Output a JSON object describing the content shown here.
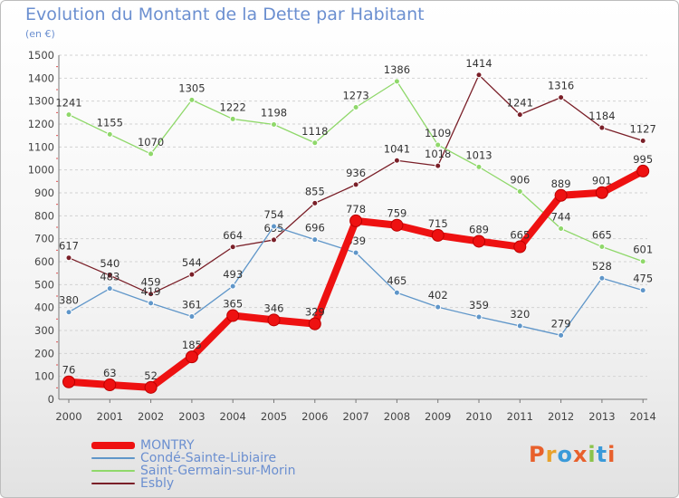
{
  "header": {
    "title": "Evolution du Montant de la Dette par Habitant",
    "unit": "(en €)"
  },
  "logo": {
    "text": "Proxiti",
    "colors": [
      "#e8602c",
      "#e8a22c",
      "#3a9ad9",
      "#e8602c",
      "#8bc34a",
      "#3a9ad9",
      "#e8602c"
    ]
  },
  "chart_data": {
    "type": "line",
    "title": "Evolution du Montant de la Dette par Habitant",
    "subtitle": "(en €)",
    "xlabel": "",
    "ylabel": "",
    "categories": [
      "2000",
      "2001",
      "2002",
      "2003",
      "2004",
      "2005",
      "2006",
      "2007",
      "2008",
      "2009",
      "2010",
      "2011",
      "2012",
      "2013",
      "2014"
    ],
    "ylim": [
      0,
      1500
    ],
    "yticks": [
      "0",
      "100",
      "200",
      "300",
      "400",
      "500",
      "600",
      "700",
      "800",
      "900",
      "1000",
      "1100",
      "1200",
      "1300",
      "1400",
      "1500"
    ],
    "grid": true,
    "legend": "bottom-left",
    "series": [
      {
        "name": "Esbly",
        "color": "#7a1f28",
        "values": [
          617,
          540,
          459,
          544,
          664,
          695,
          855,
          936,
          1041,
          1018,
          1414,
          1241,
          1316,
          1184,
          1127
        ],
        "labels": [
          "617",
          "540",
          "459",
          "544",
          "664",
          "695",
          "855",
          "936",
          "1041",
          "1018",
          "1414",
          "1241",
          "1316",
          "1184",
          "1127"
        ]
      },
      {
        "name": "Saint-Germain-sur-Morin",
        "color": "#8fd86a",
        "values": [
          1241,
          1155,
          1070,
          1305,
          1222,
          1198,
          1118,
          1273,
          1386,
          1109,
          1013,
          906,
          744,
          665,
          601
        ],
        "labels": [
          "1241",
          "1155",
          "1070",
          "1305",
          "1222",
          "1198",
          "1118",
          "1273",
          "1386",
          "1109",
          "1013",
          "906",
          "744",
          "665",
          "601"
        ]
      },
      {
        "name": "Condé-Sainte-Libiaire",
        "color": "#5f96c9",
        "values": [
          380,
          483,
          419,
          361,
          493,
          754,
          696,
          639,
          465,
          402,
          359,
          320,
          279,
          528,
          475
        ],
        "labels": [
          "380",
          "483",
          "419",
          "361",
          "493",
          "754",
          "696",
          "639",
          "465",
          "402",
          "359",
          "320",
          "279",
          "528",
          "475"
        ]
      },
      {
        "name": "MONTRY",
        "color": "#ee1111",
        "values": [
          76,
          63,
          52,
          185,
          365,
          346,
          329,
          778,
          759,
          715,
          689,
          665,
          889,
          901,
          995
        ],
        "labels": [
          "76",
          "63",
          "52",
          "185",
          "365",
          "346",
          "329",
          "778",
          "759",
          "715",
          "689",
          "665",
          "889",
          "901",
          "995"
        ]
      }
    ],
    "legend_order": [
      "MONTRY",
      "Condé-Sainte-Libiaire",
      "Saint-Germain-sur-Morin",
      "Esbly"
    ]
  }
}
